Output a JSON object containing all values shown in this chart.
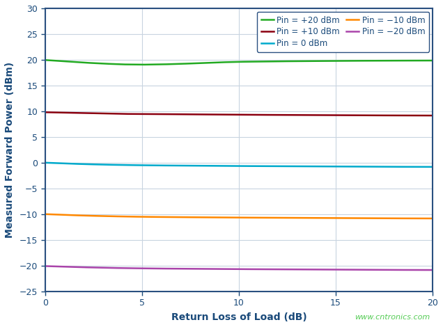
{
  "title": "",
  "xlabel": "Return Loss of Load (dB)",
  "ylabel": "Measured Forward Power (dBm)",
  "xlim": [
    0,
    20
  ],
  "ylim": [
    -25,
    30
  ],
  "xticks": [
    0,
    5,
    10,
    15,
    20
  ],
  "yticks": [
    -25,
    -20,
    -15,
    -10,
    -5,
    0,
    5,
    10,
    15,
    20,
    25,
    30
  ],
  "axes_bg": "#ffffff",
  "figure_bg": "#ffffff",
  "grid_color": "#c8d4e0",
  "spine_color": "#2a5080",
  "series": [
    {
      "label": "Pin = +20 dBm",
      "color": "#22aa22",
      "x": [
        0,
        1,
        2,
        3,
        4,
        5,
        6,
        7,
        8,
        9,
        10,
        11,
        12,
        13,
        14,
        15,
        16,
        17,
        18,
        19,
        20
      ],
      "y": [
        19.95,
        19.7,
        19.45,
        19.25,
        19.1,
        19.05,
        19.1,
        19.2,
        19.35,
        19.5,
        19.6,
        19.65,
        19.7,
        19.72,
        19.75,
        19.78,
        19.8,
        19.82,
        19.83,
        19.84,
        19.85
      ]
    },
    {
      "label": "Pin = +10 dBm",
      "color": "#8b0010",
      "x": [
        0,
        1,
        2,
        3,
        4,
        5,
        6,
        7,
        8,
        9,
        10,
        11,
        12,
        13,
        14,
        15,
        16,
        17,
        18,
        19,
        20
      ],
      "y": [
        9.8,
        9.72,
        9.63,
        9.55,
        9.48,
        9.45,
        9.43,
        9.41,
        9.38,
        9.35,
        9.32,
        9.3,
        9.28,
        9.26,
        9.24,
        9.22,
        9.2,
        9.19,
        9.18,
        9.17,
        9.16
      ]
    },
    {
      "label": "Pin = 0 dBm",
      "color": "#00aacc",
      "x": [
        0,
        1,
        2,
        3,
        4,
        5,
        6,
        7,
        8,
        9,
        10,
        11,
        12,
        13,
        14,
        15,
        16,
        17,
        18,
        19,
        20
      ],
      "y": [
        0.0,
        -0.15,
        -0.28,
        -0.38,
        -0.45,
        -0.5,
        -0.54,
        -0.57,
        -0.6,
        -0.63,
        -0.65,
        -0.67,
        -0.69,
        -0.71,
        -0.73,
        -0.75,
        -0.77,
        -0.79,
        -0.8,
        -0.81,
        -0.82
      ]
    },
    {
      "label": "Pin = −10 dBm",
      "color": "#ff8800",
      "x": [
        0,
        1,
        2,
        3,
        4,
        5,
        6,
        7,
        8,
        9,
        10,
        11,
        12,
        13,
        14,
        15,
        16,
        17,
        18,
        19,
        20
      ],
      "y": [
        -10.0,
        -10.15,
        -10.28,
        -10.38,
        -10.46,
        -10.52,
        -10.56,
        -10.59,
        -10.62,
        -10.65,
        -10.67,
        -10.69,
        -10.71,
        -10.73,
        -10.75,
        -10.77,
        -10.79,
        -10.81,
        -10.82,
        -10.83,
        -10.84
      ]
    },
    {
      "label": "Pin = −20 dBm",
      "color": "#aa44aa",
      "x": [
        0,
        1,
        2,
        3,
        4,
        5,
        6,
        7,
        8,
        9,
        10,
        11,
        12,
        13,
        14,
        15,
        16,
        17,
        18,
        19,
        20
      ],
      "y": [
        -20.1,
        -20.22,
        -20.33,
        -20.42,
        -20.49,
        -20.54,
        -20.58,
        -20.61,
        -20.64,
        -20.67,
        -20.69,
        -20.71,
        -20.73,
        -20.75,
        -20.77,
        -20.79,
        -20.81,
        -20.83,
        -20.84,
        -20.85,
        -20.86
      ]
    }
  ],
  "watermark": "www.cntronics.com",
  "watermark_color": "#55cc55",
  "axis_label_color": "#1a4a7a",
  "tick_label_color": "#1a4a7a",
  "legend_text_color": "#1a4a7a"
}
